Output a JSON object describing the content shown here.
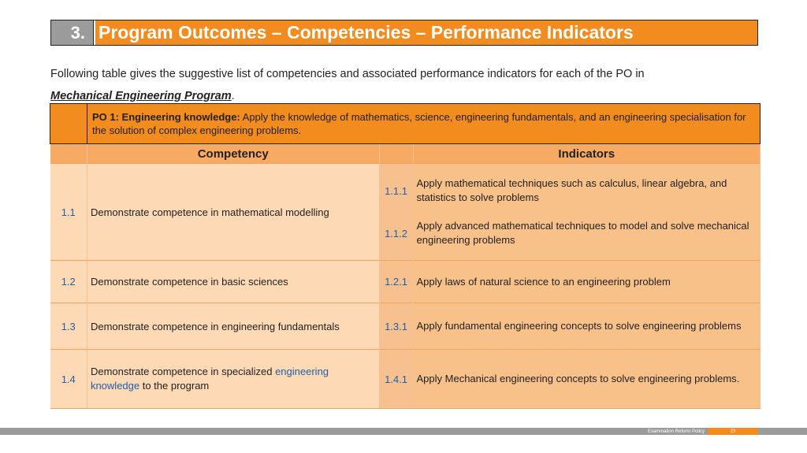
{
  "title": {
    "number": "3.",
    "text": "Program Outcomes – Competencies – Performance Indicators"
  },
  "intro": {
    "sentence": "Following table gives the suggestive list of competencies and associated performance indicators for each of the PO in",
    "program": "Mechanical Engineering Program",
    "period": "."
  },
  "po": {
    "label": "PO 1: Engineering knowledge:",
    "text": " Apply the knowledge of mathematics, science, engineering fundamentals, and an engineering specialisation for the solution of complex engineering problems."
  },
  "headers": {
    "competency": "Competency",
    "indicators": "Indicators"
  },
  "rows": [
    {
      "num": "1.1",
      "competency": "Demonstrate competence in mathematical modelling",
      "indicators": [
        {
          "code": "1.1.1",
          "text": "Apply mathematical techniques such as calculus, linear algebra, and statistics to solve problems"
        },
        {
          "code": "1.1.2",
          "text": "Apply advanced mathematical techniques to model and solve mechanical engineering problems"
        }
      ]
    },
    {
      "num": "1.2",
      "competency": "Demonstrate competence in basic sciences",
      "indicators": [
        {
          "code": "1.2.1",
          "text": "Apply laws of natural science to an engineering problem"
        }
      ]
    },
    {
      "num": "1.3",
      "competency": "Demonstrate competence in engineering fundamentals",
      "indicators": [
        {
          "code": "1.3.1",
          "text": "Apply fundamental engineering concepts to solve engineering problems"
        }
      ]
    },
    {
      "num": "1.4",
      "competency_a": "Demonstrate competence in specialized ",
      "competency_b": "engineering knowledge",
      "competency_c": " to the program",
      "indicators": [
        {
          "code": "1.4.1",
          "text": "Apply Mechanical engineering concepts to solve engineering problems."
        }
      ]
    }
  ],
  "footer": {
    "label": "Examination Reform Policy",
    "page": "23"
  },
  "colors": {
    "accent": "#f28c1e",
    "gray": "#9b9b9b",
    "link": "#1f5fa8"
  }
}
